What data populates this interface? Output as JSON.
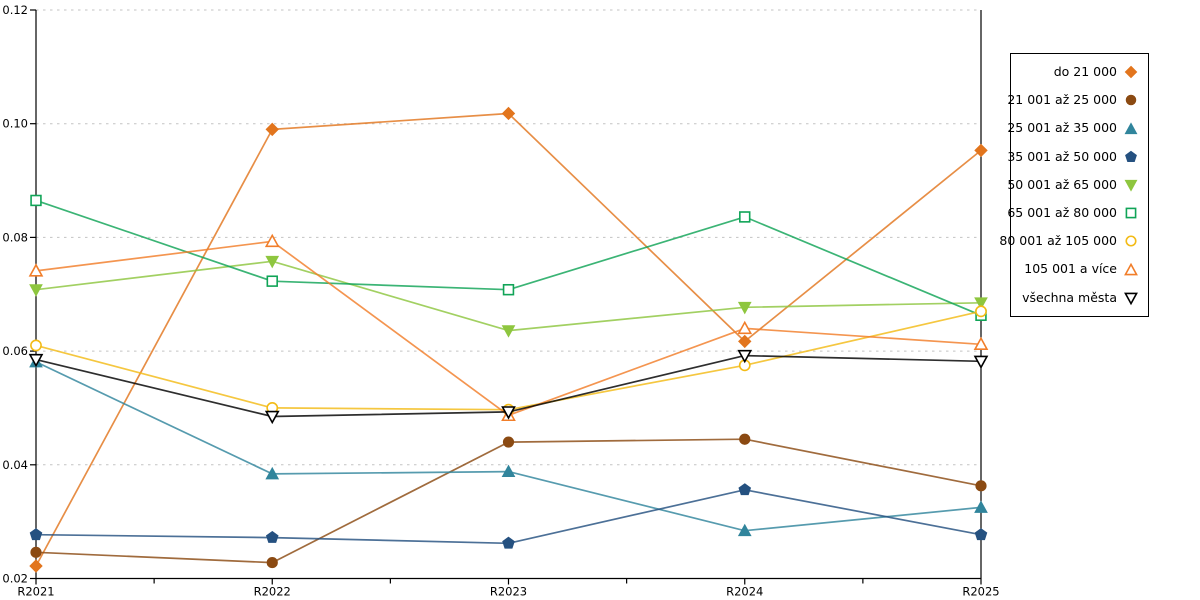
{
  "chart_data": {
    "type": "line",
    "title": "",
    "xlabel": "",
    "ylabel": "",
    "categories": [
      "R2021",
      "R2022",
      "R2023",
      "R2024",
      "R2025"
    ],
    "ylim": [
      0.02,
      0.12
    ],
    "yticks": [
      0.02,
      0.04,
      0.06,
      0.08,
      0.1,
      0.12
    ],
    "ytick_labels": [
      "0.02",
      "0.04",
      "0.06",
      "0.08",
      "0.10",
      "0.12"
    ],
    "grid": "horizontal-dashed",
    "gridline_color": "#c3c3c3",
    "axis_color": "#000000",
    "legend_position": "outside-right",
    "x_minor_ticks": true,
    "series": [
      {
        "name": "do 21 000",
        "marker": "diamond",
        "fill": "solid",
        "color": "#e2751d",
        "values": [
          0.0222,
          0.099,
          0.1018,
          0.0617,
          0.0953
        ]
      },
      {
        "name": "21 001 až 25 000",
        "marker": "circle",
        "fill": "solid",
        "color": "#8b4a12",
        "values": [
          0.0246,
          0.0228,
          0.044,
          0.0445,
          0.0363
        ]
      },
      {
        "name": "25 001 až 35 000",
        "marker": "triangle-up",
        "fill": "solid",
        "color": "#31859c",
        "values": [
          0.0581,
          0.0384,
          0.0388,
          0.0284,
          0.0325
        ]
      },
      {
        "name": "35 001 až 50 000",
        "marker": "pentagon",
        "fill": "solid",
        "color": "#255180",
        "values": [
          0.0277,
          0.0272,
          0.0262,
          0.0356,
          0.0277
        ]
      },
      {
        "name": "50 001 až 65 000",
        "marker": "triangle-down",
        "fill": "solid",
        "color": "#8ec63f",
        "values": [
          0.0708,
          0.0758,
          0.0636,
          0.0677,
          0.0685
        ]
      },
      {
        "name": "65 001 až 80 000",
        "marker": "square",
        "fill": "open",
        "color": "#10a457",
        "values": [
          0.0865,
          0.0723,
          0.0708,
          0.0836,
          0.0663
        ]
      },
      {
        "name": "80 001 až 105 000",
        "marker": "circle",
        "fill": "open",
        "color": "#f3bb16",
        "values": [
          0.061,
          0.05,
          0.0497,
          0.0575,
          0.067
        ]
      },
      {
        "name": "105 001 a více",
        "marker": "triangle-up",
        "fill": "open",
        "color": "#f17e2a",
        "values": [
          0.0741,
          0.0793,
          0.0487,
          0.064,
          0.0612
        ]
      },
      {
        "name": "všechna města",
        "marker": "triangle-down",
        "fill": "open",
        "color": "#000000",
        "values": [
          0.0585,
          0.0485,
          0.0493,
          0.0592,
          0.0582
        ]
      }
    ]
  }
}
